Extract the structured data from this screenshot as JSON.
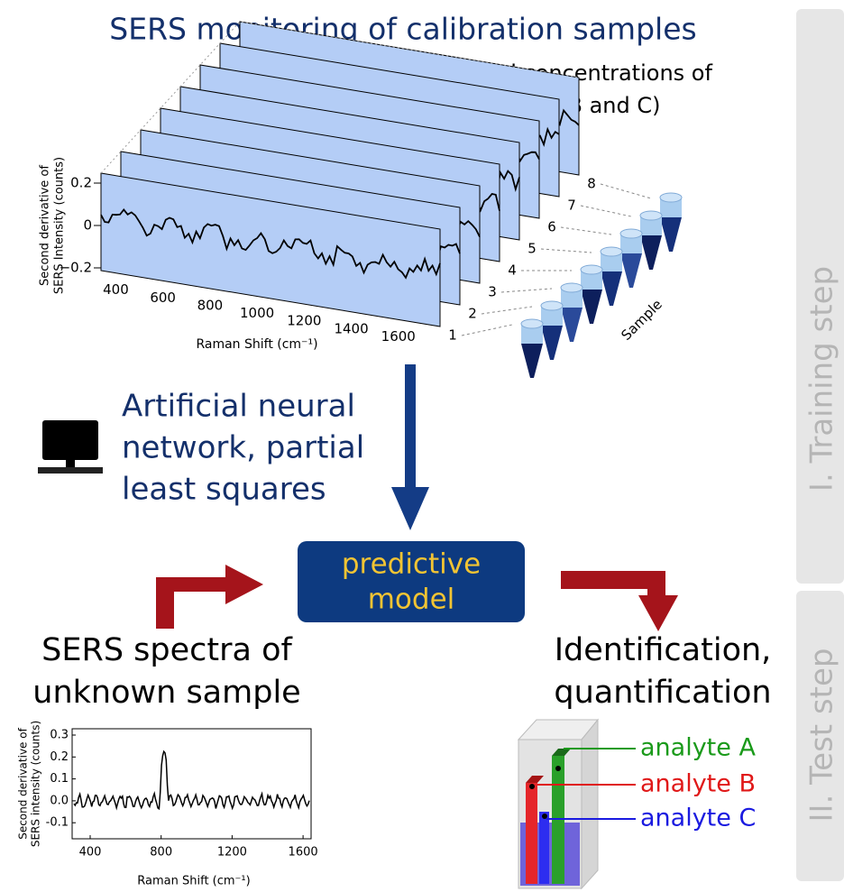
{
  "title": "SERS monitoring of calibration samples",
  "subtitle_lines": [
    "(varied concentrations of",
    "analytes A, B and C)"
  ],
  "calibration_plot": {
    "y_label_lines": [
      "Second derivative of",
      "SERS Intensity (counts)"
    ],
    "y_ticks": [
      "0.2",
      "0",
      "−0.2"
    ],
    "x_ticks": [
      "400",
      "600",
      "800",
      "1000",
      "1200",
      "1400",
      "1600"
    ],
    "x_label": "Raman Shift (cm⁻¹)",
    "samples": [
      "1",
      "2",
      "3",
      "4",
      "5",
      "6",
      "7",
      "8"
    ],
    "sample_axis_label": "Sample"
  },
  "method_lines": [
    "Artificial neural",
    "network, partial",
    "least squares"
  ],
  "model_lines": [
    "predictive",
    "model"
  ],
  "unknown_lines": [
    "SERS spectra of",
    "unknown sample"
  ],
  "unknown_plot": {
    "y_label_lines": [
      "Second derivative of",
      "SERS intensity (counts)"
    ],
    "y_ticks": [
      "0.3",
      "0.2",
      "0.1",
      "0.0",
      "-0.1"
    ],
    "x_ticks": [
      "400",
      "800",
      "1200",
      "1600"
    ],
    "x_label": "Raman Shift (cm⁻¹)"
  },
  "result_lines": [
    "Identification,",
    "quantification"
  ],
  "analytes": [
    "analyte A",
    "analyte B",
    "analyte C"
  ],
  "steps": [
    "I. Training step",
    "II. Test step"
  ]
}
